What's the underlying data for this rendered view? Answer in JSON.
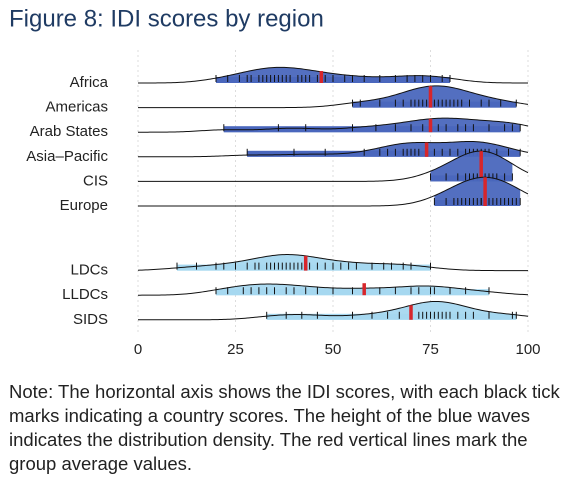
{
  "chart_data": {
    "type": "ridgeline",
    "title": "Figure 8: IDI scores by region",
    "xlim": [
      0,
      100
    ],
    "xticks": [
      0,
      25,
      50,
      75,
      100
    ],
    "grid": true,
    "mean_color": "#d7262b",
    "series": [
      {
        "name": "Africa",
        "color": "#4a67bd",
        "mean": 47,
        "values": [
          20,
          23,
          26,
          28,
          29,
          31,
          32,
          33,
          34,
          35,
          36,
          37,
          38,
          39,
          41,
          42,
          43,
          44,
          46,
          48,
          50,
          53,
          55,
          58,
          62,
          66,
          69,
          71,
          73,
          75,
          78,
          80
        ]
      },
      {
        "name": "Americas",
        "color": "#4a67bd",
        "mean": 75,
        "values": [
          55,
          57,
          62,
          66,
          68,
          70,
          71,
          72,
          73,
          74,
          75,
          76,
          77,
          78,
          79,
          80,
          81,
          82,
          83,
          85,
          88,
          90,
          93,
          97
        ]
      },
      {
        "name": "Arab States",
        "color": "#4a67bd",
        "mean": 75,
        "values": [
          22,
          36,
          43,
          55,
          61,
          66,
          70,
          73,
          75,
          77,
          79,
          82,
          84,
          86,
          90,
          94,
          96,
          98
        ]
      },
      {
        "name": "Asia–Pacific",
        "color": "#4a67bd",
        "mean": 74,
        "values": [
          28,
          40,
          48,
          58,
          62,
          64,
          66,
          68,
          69,
          70,
          71,
          72,
          74,
          76,
          78,
          80,
          82,
          84,
          85,
          86,
          87,
          88,
          89,
          90,
          92,
          95,
          98
        ]
      },
      {
        "name": "CIS",
        "color": "#4a67bd",
        "mean": 88,
        "values": [
          75,
          79,
          82,
          84,
          85,
          86,
          87,
          88,
          89,
          90,
          91,
          92,
          94,
          96
        ]
      },
      {
        "name": "Europe",
        "color": "#4a67bd",
        "mean": 89,
        "values": [
          76,
          79,
          81,
          82,
          83,
          84,
          85,
          86,
          87,
          88,
          88,
          89,
          90,
          90,
          91,
          92,
          93,
          94,
          95,
          96,
          97,
          98
        ]
      },
      {
        "name": "LDCs",
        "color": "#a6d8f0",
        "mean": 43,
        "values": [
          10,
          15,
          20,
          22,
          25,
          28,
          30,
          31,
          33,
          34,
          35,
          36,
          37,
          38,
          39,
          40,
          41,
          42,
          43,
          44,
          46,
          48,
          50,
          52,
          54,
          56,
          60,
          63,
          65,
          68,
          70,
          75
        ]
      },
      {
        "name": "LLDCs",
        "color": "#a6d8f0",
        "mean": 58,
        "values": [
          20,
          23,
          27,
          29,
          31,
          33,
          35,
          38,
          40,
          43,
          46,
          50,
          55,
          58,
          62,
          66,
          70,
          72,
          75,
          76,
          80,
          84,
          90
        ]
      },
      {
        "name": "SIDS",
        "color": "#a6d8f0",
        "mean": 70,
        "values": [
          33,
          38,
          42,
          46,
          55,
          60,
          64,
          67,
          70,
          72,
          73,
          74,
          75,
          76,
          77,
          78,
          79,
          80,
          82,
          84,
          86,
          90,
          96,
          97
        ]
      }
    ]
  },
  "note": "Note: The horizontal axis shows the IDI scores, with each black tick marks indicating a country scores. The height of the blue waves indicates the distribution density. The red vertical lines mark the group average values."
}
